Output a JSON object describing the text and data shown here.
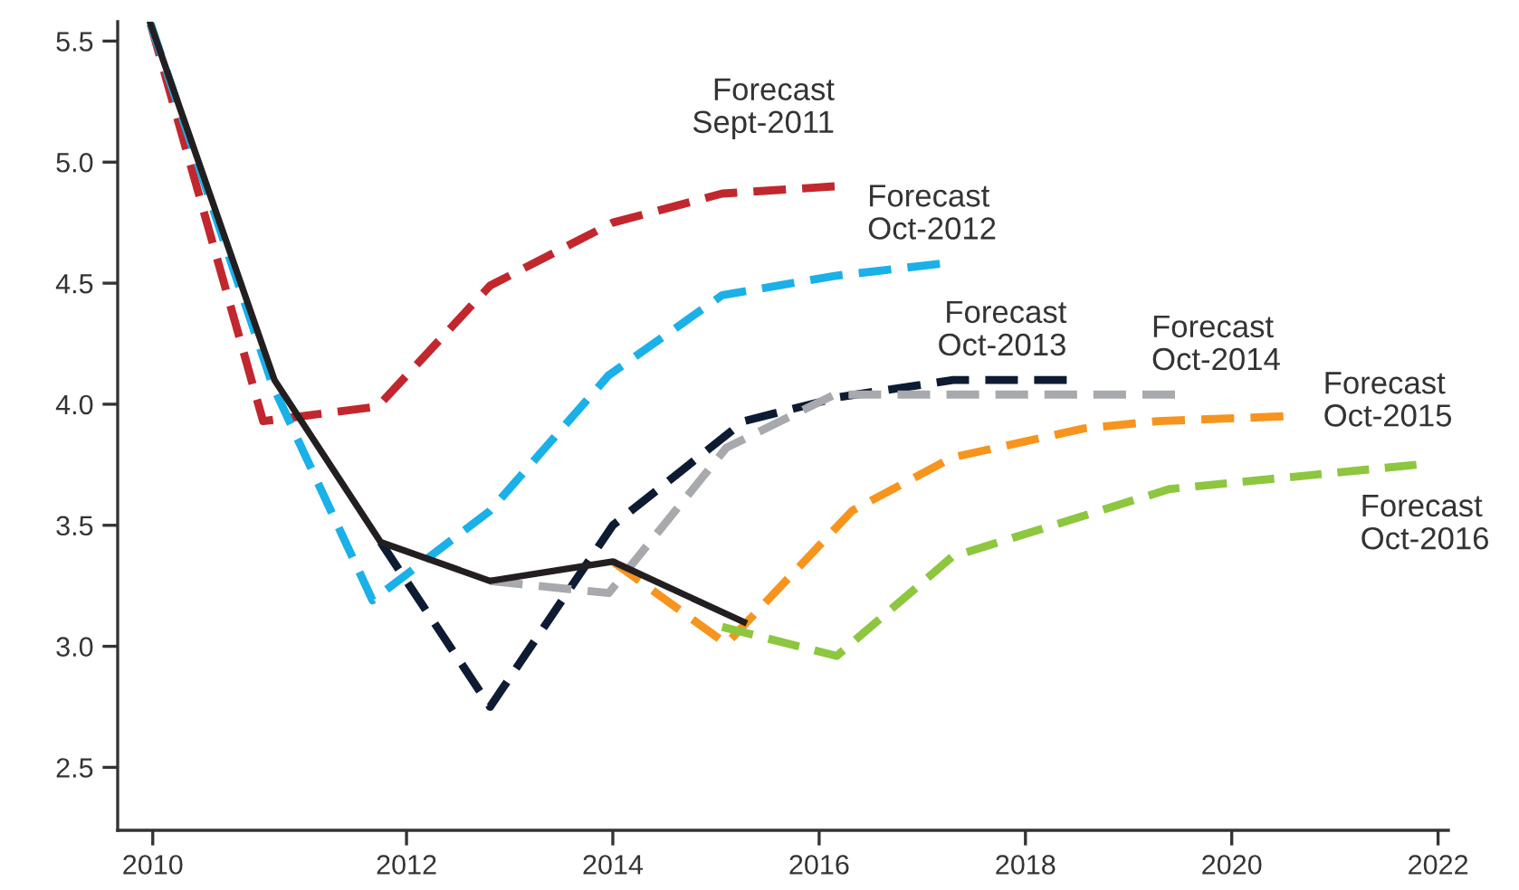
{
  "chart_data": {
    "type": "line",
    "xlim": [
      2009.2,
      2022.1
    ],
    "ylim": [
      2.24,
      5.58
    ],
    "xticks": [
      {
        "value": 2009.54,
        "label": "2010"
      },
      2012,
      2014,
      2016,
      2018,
      2020,
      2022
    ],
    "yticks": [
      {
        "value": 2.5,
        "label": "2.5"
      },
      {
        "value": 3.0,
        "label": "3.0"
      },
      {
        "value": 3.5,
        "label": "3.5"
      },
      {
        "value": 4.0,
        "label": "4.0"
      },
      {
        "value": 4.5,
        "label": "4.5"
      },
      {
        "value": 5.0,
        "label": "5.0"
      },
      {
        "value": 5.5,
        "label": "5.5"
      }
    ],
    "grid": false,
    "legend": false,
    "series": [
      {
        "name": "Forecast\nSept-2011",
        "color": "#c1272d",
        "line_style": "dashed",
        "x": [
          2009.52,
          2010.61,
          2011.72,
          2012.81,
          2014.0,
          2015.06,
          2016.15
        ],
        "values": [
          5.57,
          3.93,
          3.99,
          4.49,
          4.75,
          4.87,
          4.9
        ]
      },
      {
        "name": "Forecast\nOct-2012",
        "color": "#1ab0e8",
        "line_style": "dashed",
        "x": [
          2009.52,
          2010.7,
          2011.67,
          2012.81,
          2013.96,
          2015.06,
          2016.15,
          2017.17
        ],
        "values": [
          5.57,
          4.08,
          3.19,
          3.56,
          4.12,
          4.45,
          4.53,
          4.58
        ]
      },
      {
        "name": "Forecast\nOct-2013",
        "color": "#0d1b33",
        "line_style": "dashed",
        "x": [
          2011.75,
          2012.81,
          2014.0,
          2015.27,
          2016.2,
          2017.3,
          2018.4
        ],
        "values": [
          3.43,
          2.75,
          3.5,
          3.93,
          4.03,
          4.1,
          4.1
        ]
      },
      {
        "name": "Forecast\nOct-2014",
        "color": "#a8a9ad",
        "line_style": "dashed",
        "x": [
          2012.81,
          2013.96,
          2015.1,
          2016.15,
          2019.45
        ],
        "values": [
          3.27,
          3.22,
          3.82,
          4.04,
          4.04
        ]
      },
      {
        "name": "Forecast\nOct-2015",
        "color": "#f7941d",
        "line_style": "dashed",
        "x": [
          2014.0,
          2015.1,
          2016.32,
          2017.29,
          2018.57,
          2019.28,
          2020.5
        ],
        "values": [
          3.35,
          3.01,
          3.56,
          3.78,
          3.9,
          3.93,
          3.95
        ]
      },
      {
        "name": "Forecast\nOct-2016",
        "color": "#8dc63f",
        "line_style": "dashed",
        "x": [
          2015.06,
          2016.17,
          2017.29,
          2019.4,
          2021.79
        ],
        "values": [
          3.08,
          2.96,
          3.37,
          3.65,
          3.75
        ]
      },
      {
        "color": "#231f20",
        "line_style": "solid",
        "x": [
          2009.52,
          2010.72,
          2011.75,
          2012.81,
          2014.0,
          2015.27
        ],
        "values": [
          5.57,
          4.1,
          3.43,
          3.27,
          3.35,
          3.1
        ]
      }
    ]
  }
}
